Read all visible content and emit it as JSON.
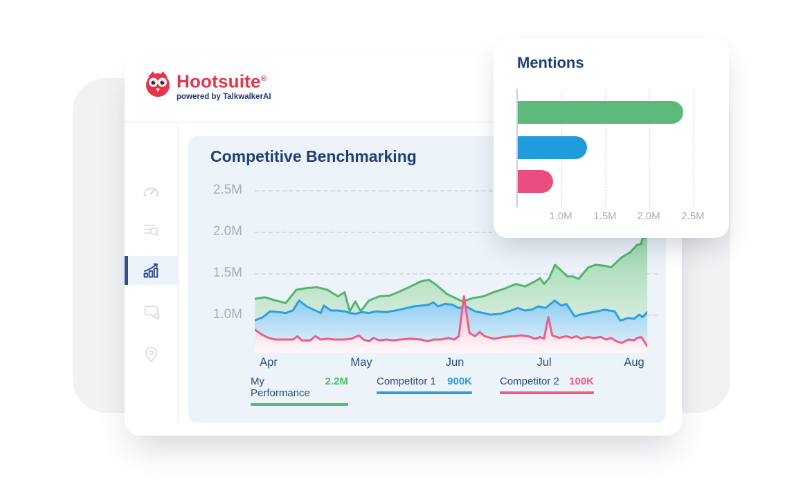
{
  "brand": {
    "logo_text": "Hootsuite",
    "logo_reg": "®",
    "logo_tagline": "powered by TalkwalkerAI",
    "logo_color": "#e4354b",
    "tagline_color": "#23356b"
  },
  "sidebar": {
    "items": [
      {
        "icon": "speedometer-icon",
        "active": false
      },
      {
        "icon": "list-search-icon",
        "active": false
      },
      {
        "icon": "bar-chart-trend-icon",
        "active": true
      },
      {
        "icon": "chat-bubbles-icon",
        "active": false
      },
      {
        "icon": "location-pin-icon",
        "active": false
      }
    ],
    "active_color": "#2d4f8e",
    "inactive_color": "#d7dde8"
  },
  "chart_data": [
    {
      "type": "area",
      "title": "Competitive Benchmarking",
      "x_ticks": [
        "Apr",
        "May",
        "Jun",
        "Jul",
        "Aug"
      ],
      "y_ticks": [
        "2.5M",
        "2.0M",
        "1.5M",
        "1.0M"
      ],
      "y_axis": {
        "unit": "M",
        "gridlines": [
          2.5,
          2.0,
          1.5,
          1.0
        ],
        "visible_min": 0.54,
        "visible_max": 1.96,
        "grid": "dashed"
      },
      "legend_position": "bottom",
      "series": [
        {
          "name": "My Performance",
          "display_value": "2.2M",
          "color": "#53b56d",
          "value_color": "#4cbd72",
          "fill_top": "#9ed8ae",
          "fill_bottom": "#eaf4ee",
          "points": [
            [
              0,
              1.19
            ],
            [
              2.6,
              1.21
            ],
            [
              5.3,
              1.17
            ],
            [
              7.9,
              1.14
            ],
            [
              10.6,
              1.3
            ],
            [
              13.2,
              1.32
            ],
            [
              15.9,
              1.33
            ],
            [
              18.5,
              1.3
            ],
            [
              21.2,
              1.22
            ],
            [
              22.9,
              1.27
            ],
            [
              24.2,
              1.04
            ],
            [
              25.6,
              1.16
            ],
            [
              27,
              1.04
            ],
            [
              29.1,
              1.17
            ],
            [
              31.7,
              1.22
            ],
            [
              34.4,
              1.23
            ],
            [
              37,
              1.28
            ],
            [
              39.7,
              1.34
            ],
            [
              42.3,
              1.4
            ],
            [
              44.4,
              1.42
            ],
            [
              46.2,
              1.36
            ],
            [
              48.9,
              1.25
            ],
            [
              51.1,
              1.2
            ],
            [
              52.9,
              1.16
            ],
            [
              55.6,
              1.2
            ],
            [
              58.2,
              1.22
            ],
            [
              60.8,
              1.27
            ],
            [
              63.5,
              1.31
            ],
            [
              66.5,
              1.37
            ],
            [
              68.8,
              1.34
            ],
            [
              71.4,
              1.4
            ],
            [
              72.7,
              1.44
            ],
            [
              73.7,
              1.37
            ],
            [
              75,
              1.44
            ],
            [
              76.5,
              1.6
            ],
            [
              78.3,
              1.52
            ],
            [
              79.7,
              1.46
            ],
            [
              81.1,
              1.46
            ],
            [
              82.5,
              1.43
            ],
            [
              85,
              1.57
            ],
            [
              86.8,
              1.6
            ],
            [
              89.1,
              1.59
            ],
            [
              90.8,
              1.57
            ],
            [
              92.1,
              1.63
            ],
            [
              93.5,
              1.69
            ],
            [
              95.6,
              1.75
            ],
            [
              97.4,
              1.84
            ],
            [
              98.4,
              1.85
            ],
            [
              98.8,
              1.92
            ],
            [
              100,
              1.93
            ]
          ]
        },
        {
          "name": "Competitor 1",
          "display_value": "900K",
          "color": "#2d9fe0",
          "value_color": "#2d9fe0",
          "fill_top": "#8fcdf0",
          "fill_bottom": "#e8f3fb",
          "points": [
            [
              0,
              0.93
            ],
            [
              2.1,
              0.97
            ],
            [
              3.9,
              1.04
            ],
            [
              6.2,
              1.03
            ],
            [
              7.9,
              1.02
            ],
            [
              9.7,
              1.05
            ],
            [
              11.3,
              1.17
            ],
            [
              13.2,
              1.1
            ],
            [
              15,
              1.06
            ],
            [
              16.8,
              1.02
            ],
            [
              17.6,
              1.11
            ],
            [
              19.4,
              1.05
            ],
            [
              21.2,
              1.05
            ],
            [
              22.9,
              1.04
            ],
            [
              24.2,
              1.02
            ],
            [
              25.6,
              1.01
            ],
            [
              27.3,
              1.03
            ],
            [
              29.1,
              1.02
            ],
            [
              30.9,
              1.04
            ],
            [
              33.5,
              1.03
            ],
            [
              37,
              1.06
            ],
            [
              40.6,
              1.1
            ],
            [
              44.4,
              1.12
            ],
            [
              45.5,
              1.15
            ],
            [
              46.7,
              1.1
            ],
            [
              48.5,
              1.13
            ],
            [
              50.3,
              1.12
            ],
            [
              52,
              1.08
            ],
            [
              53.8,
              1.1
            ],
            [
              56.1,
              1.04
            ],
            [
              58.2,
              1.02
            ],
            [
              60,
              1.0
            ],
            [
              62.6,
              1.01
            ],
            [
              65.3,
              1.05
            ],
            [
              67,
              1.08
            ],
            [
              68.8,
              1.05
            ],
            [
              70.5,
              1.06
            ],
            [
              72.3,
              1.1
            ],
            [
              74.1,
              1.08
            ],
            [
              76.4,
              1.17
            ],
            [
              78.1,
              1.11
            ],
            [
              79.4,
              1.13
            ],
            [
              81.5,
              0.98
            ],
            [
              82.9,
              1.0
            ],
            [
              85,
              1.02
            ],
            [
              87.3,
              1.04
            ],
            [
              89.1,
              1.06
            ],
            [
              90.3,
              1.05
            ],
            [
              91.7,
              1.04
            ],
            [
              93.1,
              0.93
            ],
            [
              95.2,
              0.96
            ],
            [
              96.6,
              0.95
            ],
            [
              98,
              1.0
            ],
            [
              98.8,
              0.97
            ],
            [
              100,
              1.03
            ]
          ]
        },
        {
          "name": "Competitor 2",
          "display_value": "100K",
          "color": "#ec5c88",
          "value_color": "#ef5c88",
          "fill_top": "#f7b9cd",
          "fill_bottom": "#fef7f9",
          "points": [
            [
              0,
              0.82
            ],
            [
              1.8,
              0.76
            ],
            [
              3.5,
              0.72
            ],
            [
              5.3,
              0.7
            ],
            [
              7.9,
              0.7
            ],
            [
              9.7,
              0.7
            ],
            [
              10.9,
              0.74
            ],
            [
              12,
              0.69
            ],
            [
              14.1,
              0.69
            ],
            [
              15.5,
              0.74
            ],
            [
              16.8,
              0.7
            ],
            [
              18.5,
              0.71
            ],
            [
              20.3,
              0.7
            ],
            [
              22.9,
              0.7
            ],
            [
              24.7,
              0.71
            ],
            [
              26.5,
              0.75
            ],
            [
              27.7,
              0.7
            ],
            [
              29.1,
              0.68
            ],
            [
              30.3,
              0.72
            ],
            [
              31.7,
              0.69
            ],
            [
              33.5,
              0.7
            ],
            [
              35.3,
              0.69
            ],
            [
              37,
              0.7
            ],
            [
              39.7,
              0.71
            ],
            [
              42.3,
              0.7
            ],
            [
              44.1,
              0.68
            ],
            [
              45.5,
              0.7
            ],
            [
              47.6,
              0.7
            ],
            [
              49.4,
              0.72
            ],
            [
              50.8,
              0.7
            ],
            [
              52,
              0.74
            ],
            [
              53.3,
              1.22
            ],
            [
              54.7,
              0.78
            ],
            [
              56.1,
              0.74
            ],
            [
              57.3,
              0.79
            ],
            [
              58.6,
              0.74
            ],
            [
              60.8,
              0.71
            ],
            [
              63.5,
              0.73
            ],
            [
              65.3,
              0.74
            ],
            [
              67.9,
              0.75
            ],
            [
              69.7,
              0.74
            ],
            [
              71.4,
              0.71
            ],
            [
              72.7,
              0.73
            ],
            [
              73.7,
              0.71
            ],
            [
              74.8,
              0.97
            ],
            [
              75.8,
              0.75
            ],
            [
              77.6,
              0.72
            ],
            [
              79.4,
              0.74
            ],
            [
              80.8,
              0.72
            ],
            [
              82,
              0.74
            ],
            [
              83.2,
              0.71
            ],
            [
              84.7,
              0.73
            ],
            [
              86.4,
              0.72
            ],
            [
              88.2,
              0.73
            ],
            [
              89.6,
              0.7
            ],
            [
              90.8,
              0.72
            ],
            [
              92.1,
              0.68
            ],
            [
              93.5,
              0.66
            ],
            [
              95.2,
              0.7
            ],
            [
              96.6,
              0.69
            ],
            [
              97.5,
              0.72
            ],
            [
              98.5,
              0.73
            ],
            [
              100,
              0.62
            ]
          ]
        }
      ]
    },
    {
      "type": "bar",
      "orientation": "horizontal",
      "title": "Mentions",
      "x_ticks": [
        "1.0M",
        "1.5M",
        "2.0M",
        "2.5M"
      ],
      "x_axis": {
        "unit": "M",
        "start": 0.5,
        "tick_values": [
          1.0,
          1.5,
          2.0,
          2.5
        ],
        "grid": "dotted"
      },
      "bars": [
        {
          "name": "My Performance",
          "value": 2.37,
          "color": "#5cb87b"
        },
        {
          "name": "Competitor 1",
          "value": 1.28,
          "color": "#209bdb"
        },
        {
          "name": "Competitor 2",
          "value": 0.9,
          "color": "#ec4d80"
        }
      ]
    }
  ]
}
